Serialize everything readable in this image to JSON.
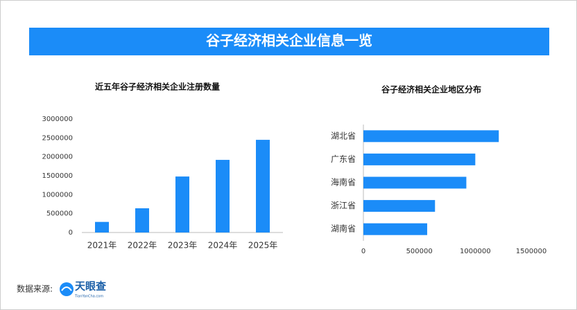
{
  "header": {
    "title": "谷子经济相关企业信息一览"
  },
  "chart_data": [
    {
      "type": "bar",
      "title": "近五年谷子经济相关企业注册数量",
      "categories": [
        "2021年",
        "2022年",
        "2023年",
        "2024年",
        "2025年"
      ],
      "values": [
        280000,
        640000,
        1480000,
        1920000,
        2450000
      ],
      "color": "#1b8cf8",
      "ylim": [
        0,
        3000000
      ],
      "yticks": [
        0,
        500000,
        1000000,
        1500000,
        2000000,
        2500000,
        3000000
      ],
      "grid": false
    },
    {
      "type": "barh",
      "title": "谷子经济相关企业地区分布",
      "categories": [
        "湖北省",
        "广东省",
        "海南省",
        "浙江省",
        "湖南省"
      ],
      "values": [
        1210000,
        1000000,
        920000,
        640000,
        570000
      ],
      "color": "#1b8cf8",
      "xlim": [
        0,
        1500000
      ],
      "xticks": [
        0,
        500000,
        1000000,
        1500000
      ],
      "grid": false
    }
  ],
  "footer": {
    "source_label": "数据来源:",
    "logo_name": "天眼查",
    "logo_domain": "TianYanCha.com"
  }
}
